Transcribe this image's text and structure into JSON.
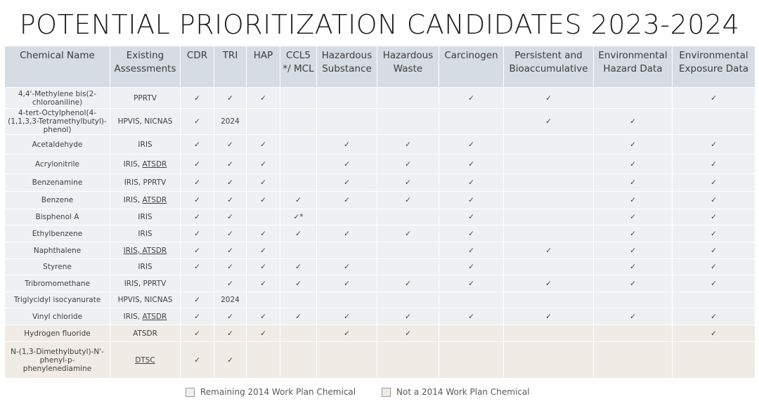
{
  "title": "POTENTIAL PRIORITIZATION CANDIDATES 2023-2024",
  "columns": [
    "Chemical Name",
    "Existing Assessments",
    "CDR",
    "TRI",
    "HAP",
    "CCL5 */ MCL",
    "Hazardous Substance",
    "Hazardous Waste",
    "Carcinogen",
    "Persistent and Bioaccumulative",
    "Environmental Hazard Data",
    "Environmental Exposure Data"
  ],
  "rows": [
    {
      "name": "4,4'-Methylene bis(2-chloroaniline)",
      "assess": [
        {
          "t": "PPRTV",
          "u": false
        }
      ],
      "cells": [
        "✓",
        "✓",
        "✓",
        "",
        "",
        "",
        "✓",
        "✓",
        "",
        "✓"
      ],
      "group": "remaining"
    },
    {
      "name": "4-tert-Octylphenol(4-(1,1,3,3-Tetramethylbutyl)-phenol)",
      "assess": [
        {
          "t": "HPVIS, NICNAS",
          "u": false
        }
      ],
      "cells": [
        "✓",
        "2024",
        "",
        "",
        "",
        "",
        "",
        "✓",
        "✓",
        ""
      ],
      "group": "remaining"
    },
    {
      "name": "Acetaldehyde",
      "assess": [
        {
          "t": "IRIS",
          "u": false
        }
      ],
      "cells": [
        "✓",
        "✓",
        "✓",
        "",
        "✓",
        "✓",
        "✓",
        "",
        "✓",
        "✓"
      ],
      "group": "remaining"
    },
    {
      "name": "Acrylonitrile",
      "assess": [
        {
          "t": "IRIS, ",
          "u": false
        },
        {
          "t": "ATSDR",
          "u": true
        }
      ],
      "cells": [
        "✓",
        "✓",
        "✓",
        "",
        "✓",
        "✓",
        "✓",
        "",
        "✓",
        "✓"
      ],
      "group": "remaining"
    },
    {
      "name": "Benzenamine",
      "assess": [
        {
          "t": "IRIS, PPRTV",
          "u": false
        }
      ],
      "cells": [
        "✓",
        "✓",
        "✓",
        "",
        "✓",
        "✓",
        "✓",
        "",
        "✓",
        "✓"
      ],
      "group": "remaining"
    },
    {
      "name": "Benzene",
      "assess": [
        {
          "t": "IRIS, ",
          "u": false
        },
        {
          "t": "ATSDR",
          "u": true
        }
      ],
      "cells": [
        "✓",
        "✓",
        "✓",
        "✓",
        "✓",
        "✓",
        "✓",
        "",
        "✓",
        "✓"
      ],
      "group": "remaining"
    },
    {
      "name": "Bisphenol A",
      "assess": [
        {
          "t": "IRIS",
          "u": false
        }
      ],
      "cells": [
        "✓",
        "✓",
        "",
        "✓*",
        "",
        "",
        "✓",
        "",
        "✓",
        "✓"
      ],
      "group": "remaining"
    },
    {
      "name": "Ethylbenzene",
      "assess": [
        {
          "t": "IRIS",
          "u": false
        }
      ],
      "cells": [
        "✓",
        "✓",
        "✓",
        "✓",
        "✓",
        "✓",
        "✓",
        "",
        "✓",
        "✓"
      ],
      "group": "remaining"
    },
    {
      "name": "Naphthalene",
      "assess": [
        {
          "t": "IRIS, ATSDR",
          "u": true
        }
      ],
      "cells": [
        "✓",
        "✓",
        "✓",
        "",
        "",
        "",
        "✓",
        "✓",
        "✓",
        "✓"
      ],
      "group": "remaining"
    },
    {
      "name": "Styrene",
      "assess": [
        {
          "t": "IRIS",
          "u": false
        }
      ],
      "cells": [
        "✓",
        "✓",
        "✓",
        "✓",
        "✓",
        "",
        "✓",
        "",
        "✓",
        "✓"
      ],
      "group": "remaining"
    },
    {
      "name": "Tribromomethane",
      "assess": [
        {
          "t": "IRIS, PPRTV",
          "u": false
        }
      ],
      "cells": [
        "",
        "✓",
        "✓",
        "✓",
        "✓",
        "✓",
        "✓",
        "✓",
        "✓",
        "✓"
      ],
      "group": "remaining"
    },
    {
      "name": "Triglycidyl isocyanurate",
      "assess": [
        {
          "t": "HPVIS, NICNAS",
          "u": false
        }
      ],
      "cells": [
        "✓",
        "2024",
        "",
        "",
        "",
        "",
        "",
        "",
        "",
        ""
      ],
      "group": "remaining"
    },
    {
      "name": "Vinyl chloride",
      "assess": [
        {
          "t": "IRIS, ",
          "u": false
        },
        {
          "t": "ATSDR",
          "u": true
        }
      ],
      "cells": [
        "✓",
        "✓",
        "✓",
        "✓",
        "✓",
        "✓",
        "✓",
        "✓",
        "✓",
        "✓"
      ],
      "group": "remaining"
    },
    {
      "name": "Hydrogen fluoride",
      "assess": [
        {
          "t": "ATSDR",
          "u": false
        }
      ],
      "cells": [
        "✓",
        "✓",
        "✓",
        "",
        "✓",
        "✓",
        "",
        "",
        "",
        "✓"
      ],
      "group": "not"
    },
    {
      "name": "N-(1,3-Dimethylbutyl)-N'-phenyl-p-phenylenediamine",
      "assess": [
        {
          "t": "DTSC",
          "u": true
        }
      ],
      "cells": [
        "✓",
        "✓",
        "",
        "",
        "",
        "",
        "",
        "",
        "",
        ""
      ],
      "group": "not"
    }
  ],
  "legend": {
    "remaining": {
      "label": "Remaining 2014 Work Plan Chemical",
      "color": "#edf1f4"
    },
    "not": {
      "label": "Not a 2014 Work Plan Chemical",
      "color": "#f0ebe4"
    }
  }
}
